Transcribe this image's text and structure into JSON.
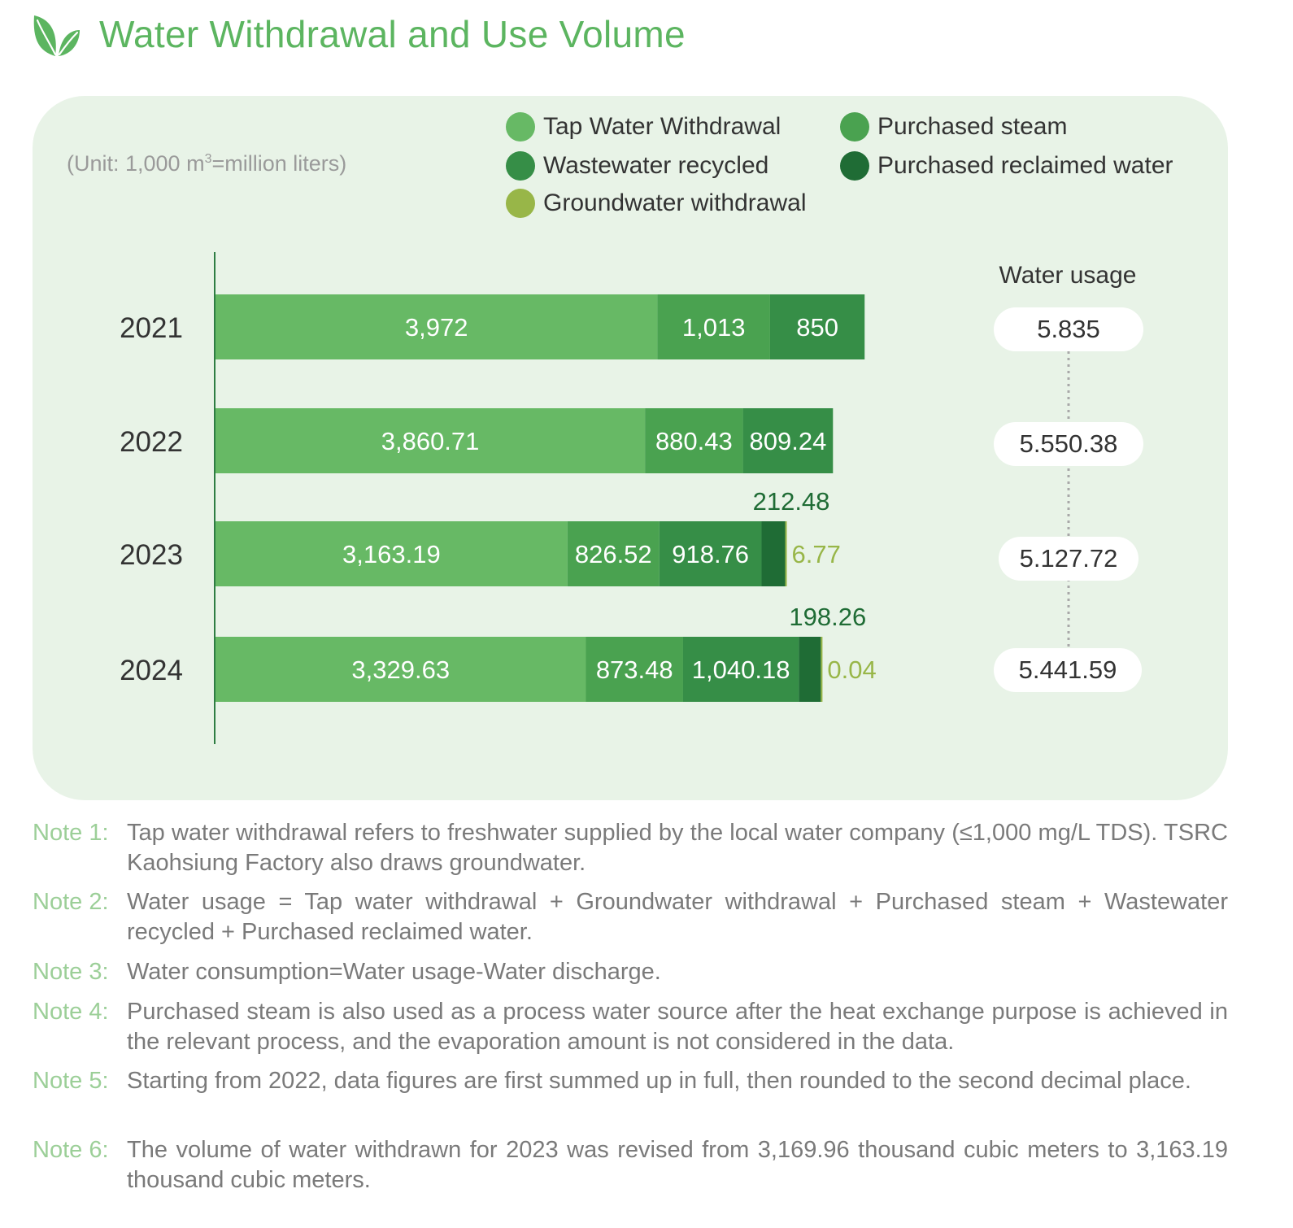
{
  "title": "Water Withdrawal and Use Volume",
  "icons": {
    "title": "leaf-icon"
  },
  "unit_note": {
    "prefix": "(Unit: 1,000 m",
    "sup": "3",
    "suffix": "=million liters)"
  },
  "colors": {
    "title": "#5cb560",
    "panel": "#e8f3e7",
    "tap": "#67b965",
    "steam": "#4aa250",
    "wastewater": "#368e47",
    "reclaimed": "#1f6c35",
    "groundwater": "#98b648",
    "note_label": "#9ccf98"
  },
  "chart_data": {
    "type": "bar",
    "orientation": "horizontal",
    "stacked": true,
    "title": "Water Withdrawal and Use Volume",
    "unit": "1,000 m3 = million liters",
    "categories": [
      "2021",
      "2022",
      "2023",
      "2024"
    ],
    "series": [
      {
        "name": "Tap Water Withdrawal",
        "key": "tap",
        "values": [
          3972,
          3860.71,
          3163.19,
          3329.63
        ],
        "labels": [
          "3,972",
          "3,860.71",
          "3,163.19",
          "3,329.63"
        ]
      },
      {
        "name": "Purchased steam",
        "key": "steam",
        "values": [
          1013,
          880.43,
          826.52,
          873.48
        ],
        "labels": [
          "1,013",
          "880.43",
          "826.52",
          "873.48"
        ]
      },
      {
        "name": "Wastewater recycled",
        "key": "wastewater",
        "values": [
          850,
          809.24,
          918.76,
          1040.18
        ],
        "labels": [
          "850",
          "809.24",
          "918.76",
          "1,040.18"
        ]
      },
      {
        "name": "Purchased reclaimed water",
        "key": "reclaimed",
        "values": [
          null,
          null,
          212.48,
          198.26
        ],
        "labels": [
          "",
          "",
          "212.48",
          "198.26"
        ]
      },
      {
        "name": "Groundwater withdrawal",
        "key": "groundwater",
        "values": [
          null,
          null,
          6.77,
          0.04
        ],
        "labels": [
          "",
          "",
          "6.77",
          "0.04"
        ]
      }
    ],
    "xlim": [
      0,
      8000
    ],
    "legend_position": "top-right",
    "water_usage": {
      "title": "Water usage",
      "labels": [
        "5.835",
        "5.550.38",
        "5.127.72",
        "5.441.59"
      ]
    }
  },
  "legend": [
    {
      "label": "Tap Water Withdrawal",
      "color": "#67b965"
    },
    {
      "label": "Purchased steam",
      "color": "#4aa250"
    },
    {
      "label": "Wastewater recycled",
      "color": "#368e47"
    },
    {
      "label": "Purchased reclaimed water",
      "color": "#1f6c35"
    },
    {
      "label": "Groundwater withdrawal",
      "color": "#98b648"
    }
  ],
  "notes": [
    {
      "label": "Note 1:",
      "text": "Tap water withdrawal refers to freshwater supplied by the local water company (≤1,000 mg/L TDS). TSRC Kaohsiung Factory also draws groundwater."
    },
    {
      "label": "Note 2:",
      "text": "Water usage = Tap water withdrawal + Groundwater withdrawal + Purchased steam + Wastewater recycled + Purchased reclaimed water."
    },
    {
      "label": "Note 3:",
      "text": "Water consumption=Water usage-Water discharge."
    },
    {
      "label": "Note 4:",
      "text": "Purchased steam is also used as a process water source after the heat exchange purpose is achieved in the relevant process, and the evaporation amount is not considered in the data."
    },
    {
      "label": "Note 5:",
      "text": "Starting from 2022, data figures are first summed up in full, then rounded to the second decimal place."
    },
    {
      "label": "Note 6:",
      "text": "The volume of water withdrawn for 2023 was revised from 3,169.96 thousand cubic meters to 3,163.19 thousand cubic meters."
    }
  ]
}
